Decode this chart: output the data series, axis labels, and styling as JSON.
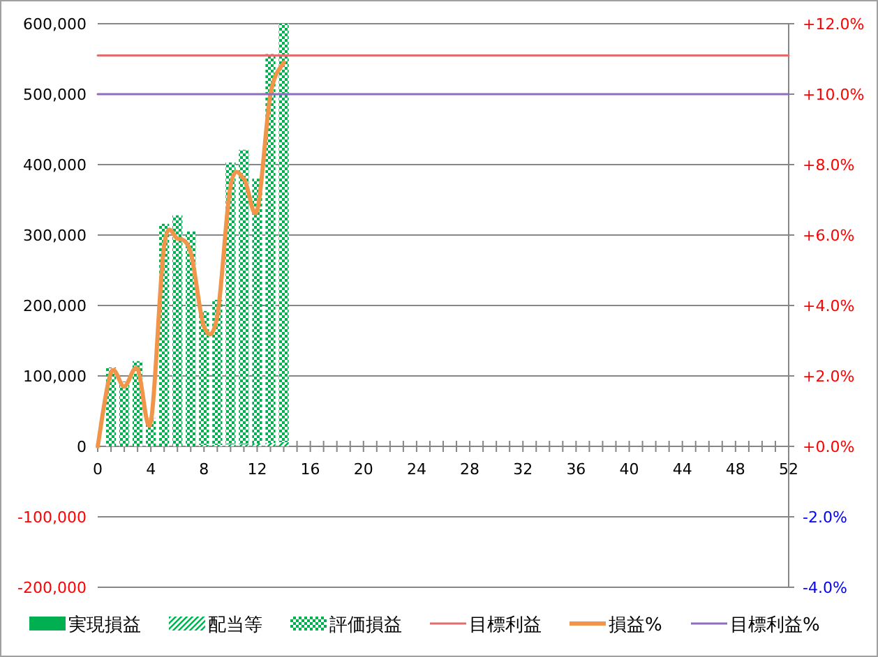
{
  "chart_data": {
    "type": "bar",
    "stacked": true,
    "x": [
      1,
      2,
      3,
      4,
      5,
      6,
      7,
      8,
      9,
      10,
      11,
      12,
      13,
      14
    ],
    "series": [
      {
        "name": "実現損益",
        "color": "#00b050",
        "values": [
          null,
          null,
          null,
          null,
          null,
          null,
          null,
          null,
          null,
          null,
          null,
          null,
          null,
          null
        ]
      },
      {
        "name": "配当等",
        "color": "#00b050",
        "values": [
          null,
          null,
          null,
          null,
          null,
          null,
          null,
          2000,
          2000,
          3000,
          3000,
          4000,
          5000,
          6000
        ]
      },
      {
        "name": "評価損益",
        "color": "#00b050",
        "values": [
          112000,
          92000,
          121000,
          40000,
          316000,
          328000,
          305000,
          190000,
          206000,
          400000,
          418000,
          376000,
          552000,
          594000
        ]
      },
      {
        "name": "目標利益",
        "type": "line",
        "color": "#e46c6c",
        "x": [
          0,
          52
        ],
        "values": [
          555000,
          555000
        ]
      },
      {
        "name": "損益%",
        "type": "line",
        "axis": "y2",
        "color": "#f0954a",
        "x": [
          0,
          1,
          2,
          3,
          4,
          5,
          6,
          7,
          8,
          9,
          10,
          11,
          12,
          13,
          14
        ],
        "values": [
          0,
          2.1,
          1.7,
          2.2,
          0.7,
          5.7,
          5.9,
          5.5,
          3.4,
          3.7,
          7.4,
          7.6,
          6.7,
          10.0,
          10.9
        ]
      },
      {
        "name": "目標利益%",
        "type": "line",
        "axis": "y2",
        "color": "#8e6cc0",
        "x": [
          0,
          52
        ],
        "values": [
          10,
          10
        ]
      }
    ],
    "xlim": [
      0,
      52
    ],
    "xticks": [
      0,
      {
        "value": 1,
        "label": null
      },
      {
        "value": 2,
        "label": null
      },
      {
        "value": 3,
        "label": null
      },
      4,
      {
        "value": 5,
        "label": null
      },
      {
        "value": 6,
        "label": null
      },
      {
        "value": 7,
        "label": null
      },
      8,
      {
        "value": 9,
        "label": null
      },
      {
        "value": 10,
        "label": null
      },
      {
        "value": 11,
        "label": null
      },
      12,
      {
        "value": 13,
        "label": null
      },
      {
        "value": 14,
        "label": null
      },
      {
        "value": 15,
        "label": null
      },
      16,
      {
        "value": 17,
        "label": null
      },
      {
        "value": 18,
        "label": null
      },
      {
        "value": 19,
        "label": null
      },
      20,
      {
        "value": 21,
        "label": null
      },
      {
        "value": 22,
        "label": null
      },
      {
        "value": 23,
        "label": null
      },
      24,
      {
        "value": 25,
        "label": null
      },
      {
        "value": 26,
        "label": null
      },
      {
        "value": 27,
        "label": null
      },
      28,
      {
        "value": 29,
        "label": null
      },
      {
        "value": 30,
        "label": null
      },
      {
        "value": 31,
        "label": null
      },
      32,
      {
        "value": 33,
        "label": null
      },
      {
        "value": 34,
        "label": null
      },
      {
        "value": 35,
        "label": null
      },
      36,
      {
        "value": 37,
        "label": null
      },
      {
        "value": 38,
        "label": null
      },
      {
        "value": 39,
        "label": null
      },
      40,
      {
        "value": 41,
        "label": null
      },
      {
        "value": 42,
        "label": null
      },
      {
        "value": 43,
        "label": null
      },
      44,
      {
        "value": 45,
        "label": null
      },
      {
        "value": 46,
        "label": null
      },
      {
        "value": 47,
        "label": null
      },
      48,
      {
        "value": 49,
        "label": null
      },
      {
        "value": 50,
        "label": null
      },
      {
        "value": 51,
        "label": null
      },
      52
    ],
    "ylim": [
      -200000,
      600000
    ],
    "yticks": [
      {
        "value": -200000,
        "label": "-200,000"
      },
      {
        "value": -100000,
        "label": "-100,000"
      },
      0,
      {
        "value": 100000,
        "label": "100,000"
      },
      {
        "value": 200000,
        "label": "200,000"
      },
      {
        "value": 300000,
        "label": "300,000"
      },
      {
        "value": 400000,
        "label": "400,000"
      },
      {
        "value": 500000,
        "label": "500,000"
      },
      {
        "value": 600000,
        "label": "600,000"
      }
    ],
    "y2lim": [
      -4,
      12
    ],
    "y2ticks": [
      {
        "value": -4,
        "label": "-4.0%"
      },
      {
        "value": -2,
        "label": "-2.0%"
      },
      {
        "value": 0,
        "label": "+0.0%"
      },
      {
        "value": 2,
        "label": "+2.0%"
      },
      {
        "value": 4,
        "label": "+4.0%"
      },
      {
        "value": 6,
        "label": "+6.0%"
      },
      {
        "value": 8,
        "label": "+8.0%"
      },
      {
        "value": 10,
        "label": "+10.0%"
      },
      {
        "value": 12,
        "label": "+12.0%"
      }
    ],
    "grid": "y",
    "legend": "bottom"
  }
}
